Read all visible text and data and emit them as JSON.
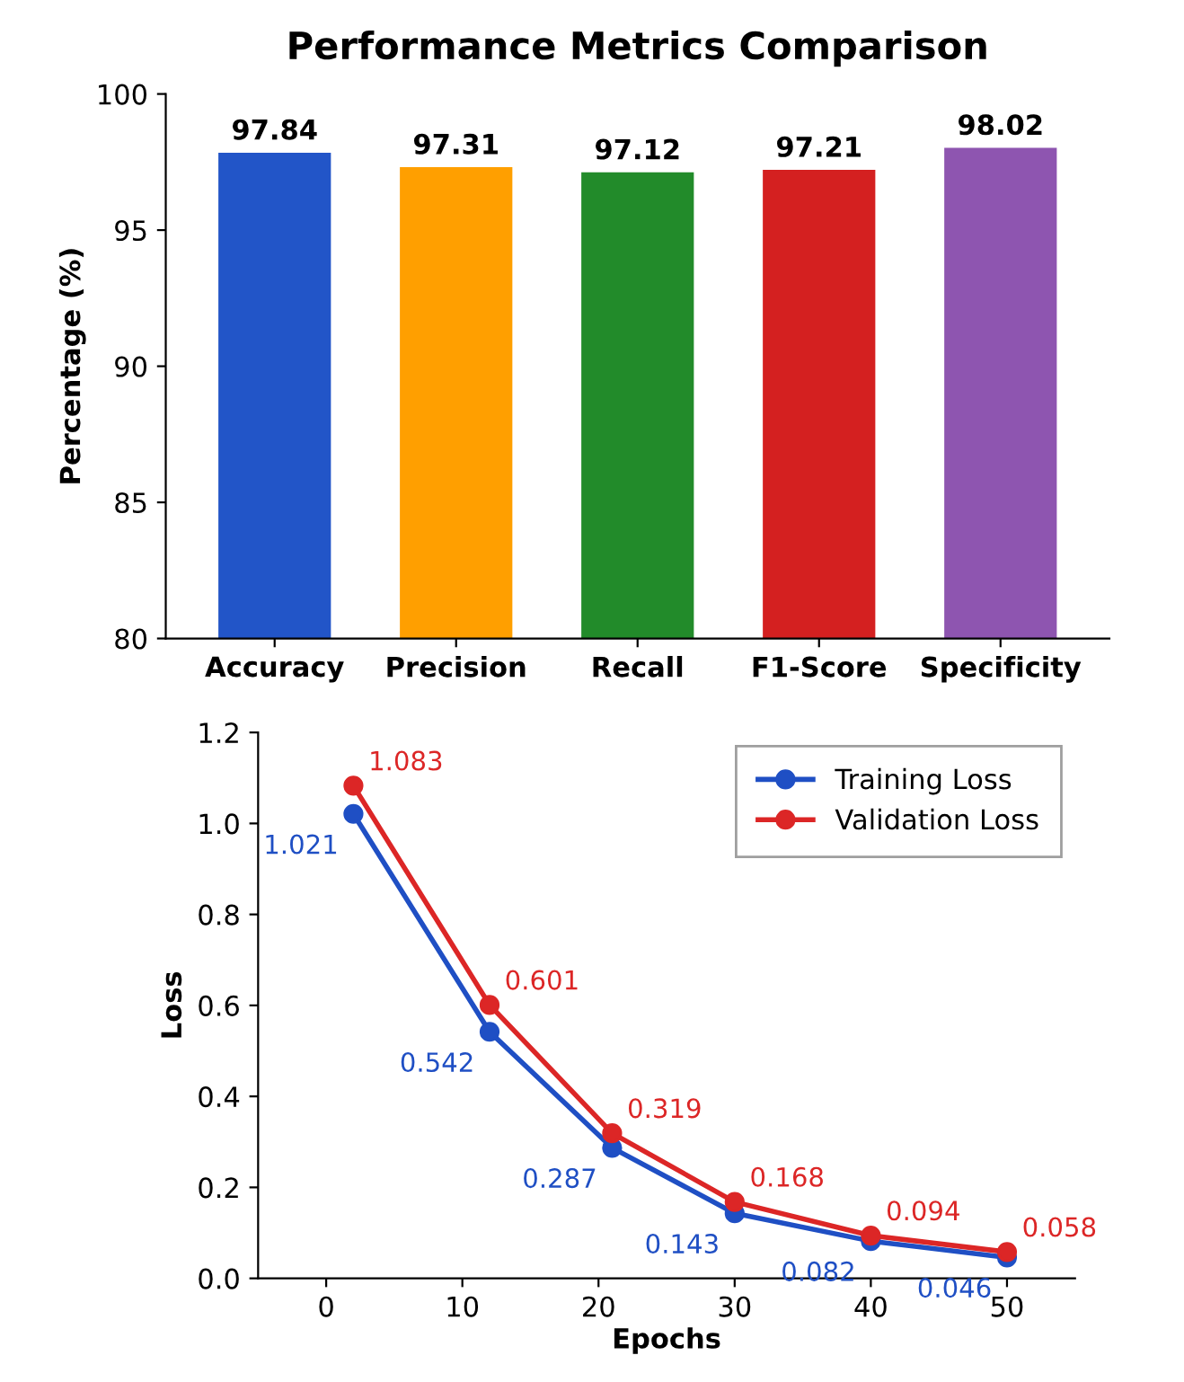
{
  "chart_data": [
    {
      "type": "bar",
      "title": "Performance Metrics Comparison",
      "ylabel": "Percentage (%)",
      "categories": [
        "Accuracy",
        "Precision",
        "Recall",
        "F1-Score",
        "Specificity"
      ],
      "values": [
        97.84,
        97.31,
        97.12,
        97.21,
        98.02
      ],
      "colors": [
        "#2255c8",
        "#ff9f00",
        "#228b2a",
        "#d42020",
        "#8e55b0"
      ],
      "ylim": [
        80,
        100
      ],
      "yticks": [
        80,
        85,
        90,
        95,
        100
      ],
      "data_labels": true,
      "grid": false
    },
    {
      "type": "line",
      "xlabel": "Epochs",
      "ylabel": "Loss",
      "x": [
        2,
        12,
        21,
        30,
        40,
        50
      ],
      "series": [
        {
          "name": "Training Loss",
          "color": "#1f4fc4",
          "values": [
            1.021,
            0.542,
            0.287,
            0.143,
            0.082,
            0.046
          ]
        },
        {
          "name": "Validation Loss",
          "color": "#dc2626",
          "values": [
            1.083,
            0.601,
            0.319,
            0.168,
            0.094,
            0.058
          ]
        }
      ],
      "xlim": [
        -5,
        55
      ],
      "xticks": [
        0,
        10,
        20,
        30,
        40,
        50
      ],
      "ylim": [
        0,
        1.2
      ],
      "yticks": [
        {
          "value": 0,
          "label": "0.0"
        },
        0.2,
        0.4,
        0.6,
        0.8,
        {
          "value": 1,
          "label": "1.0"
        },
        1.2
      ],
      "legend": "top right",
      "marker": "circle",
      "data_labels": true,
      "grid": false
    }
  ]
}
